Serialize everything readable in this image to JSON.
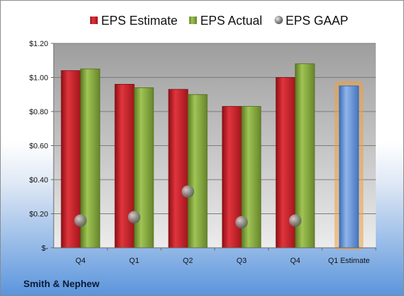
{
  "chart_data": {
    "type": "bar",
    "categories": [
      "Q4",
      "Q1",
      "Q2",
      "Q3",
      "Q4",
      "Q1 Estimate"
    ],
    "series": [
      {
        "name": "EPS Estimate",
        "values": [
          1.04,
          0.96,
          0.93,
          0.83,
          1.0,
          null
        ]
      },
      {
        "name": "EPS Actual",
        "values": [
          1.05,
          0.94,
          0.9,
          0.83,
          1.08,
          null
        ]
      },
      {
        "name": "EPS GAAP",
        "values": [
          0.16,
          0.18,
          0.33,
          0.15,
          0.16,
          null
        ]
      },
      {
        "name": "",
        "values": [
          null,
          null,
          null,
          null,
          null,
          0.95
        ]
      }
    ],
    "ylim": [
      0,
      1.2
    ],
    "yticks": [
      0,
      0.2,
      0.4,
      0.6,
      0.8,
      1.0,
      1.2
    ],
    "ytick_labels": [
      "$-",
      "$0.20",
      "$0.40",
      "$0.60",
      "$0.80",
      "$1.00",
      "$1.20"
    ],
    "grid": true,
    "legend": "top",
    "colors": {
      "estimate": "#c8202a",
      "actual": "#84a83a",
      "gaap": "#9a9a9a",
      "next_estimate": "#5b8fd6",
      "next_estimate_glow": "#f0a040"
    }
  },
  "footer": {
    "company": "Smith & Nephew"
  }
}
